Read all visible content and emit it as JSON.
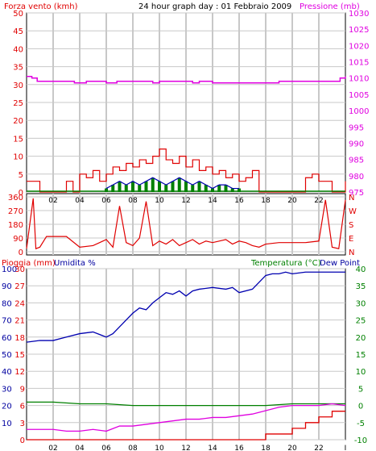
{
  "header": {
    "title": "24 hour graph day : 01 Febbraio 2009",
    "left_label": "Forza vento (kmh)",
    "right_label": "Pressione (mb)"
  },
  "hour_labels": [
    "02",
    "04",
    "06",
    "08",
    "10",
    "12",
    "14",
    "16",
    "18",
    "20",
    "22",
    "I"
  ],
  "colors": {
    "red": "#e00000",
    "magenta": "#e000e0",
    "blue": "#0000b0",
    "green": "#008000",
    "navy": "#0000a0",
    "grid": "#c8c8c8"
  },
  "chart_data": [
    {
      "type": "line",
      "title": "24 hour graph day : 01 Febbraio 2009",
      "y_left_label": "Forza vento (kmh)",
      "y_right_label": "Pressione (mb)",
      "y_left_ticks": [
        "0",
        "5",
        "10",
        "15",
        "20",
        "25",
        "30",
        "35",
        "40",
        "45",
        "50"
      ],
      "y_left_range": [
        0,
        50
      ],
      "y_right_ticks": [
        "975",
        "980",
        "985",
        "990",
        "995",
        "1000",
        "1005",
        "1010",
        "1015",
        "1020",
        "1025",
        "1030"
      ],
      "y_right_range": [
        975,
        1030
      ],
      "x_range": [
        0,
        24
      ],
      "pressure_series": {
        "x": [
          0,
          0.4,
          0.8,
          2,
          3.5,
          3.6,
          4.5,
          5.5,
          6,
          6.8,
          8,
          8.5,
          9.5,
          10,
          11,
          12,
          12.5,
          13,
          14,
          15.5,
          17,
          19,
          21,
          22,
          23,
          23.6,
          24
        ],
        "y": [
          1010.5,
          1010,
          1009,
          1009,
          1009,
          1008.5,
          1009,
          1009,
          1008.5,
          1009,
          1009,
          1009,
          1008.5,
          1009,
          1009,
          1009,
          1008.5,
          1009,
          1008.5,
          1008.5,
          1008.5,
          1009,
          1009,
          1009,
          1009,
          1010,
          1010.5
        ]
      },
      "wind_gust_series": {
        "x": [
          0,
          0.5,
          1,
          1.5,
          2,
          2.5,
          3,
          3.5,
          4,
          4.5,
          5,
          5.5,
          6,
          6.5,
          7,
          7.5,
          8,
          8.5,
          9,
          9.5,
          10,
          10.5,
          11,
          11.5,
          12,
          12.5,
          13,
          13.5,
          14,
          14.5,
          15,
          15.5,
          16,
          16.5,
          17,
          17.5,
          18,
          18.5,
          19,
          19.5,
          20,
          20.5,
          21,
          21.5,
          22,
          22.5,
          23,
          23.5,
          24
        ],
        "y": [
          3,
          3,
          0,
          0,
          0,
          0,
          3,
          0,
          5,
          4,
          6,
          3,
          5,
          7,
          6,
          8,
          7,
          9,
          8,
          10,
          12,
          9,
          8,
          10,
          7,
          9,
          6,
          7,
          5,
          6,
          4,
          5,
          3,
          4,
          6,
          0,
          0,
          0,
          0,
          0,
          0,
          0,
          4,
          5,
          3,
          3,
          0,
          0,
          3
        ]
      },
      "wind_avg_series": {
        "x": [
          6,
          6.5,
          7,
          7.5,
          8,
          8.5,
          9,
          9.5,
          10,
          10.5,
          11,
          11.5,
          12,
          12.5,
          13,
          13.5,
          14,
          14.5,
          15,
          15.5,
          16
        ],
        "y": [
          1,
          2,
          3,
          2,
          3,
          2,
          3,
          4,
          3,
          2,
          3,
          4,
          3,
          2,
          3,
          2,
          1,
          2,
          2,
          1,
          1
        ]
      }
    },
    {
      "type": "line",
      "title": "",
      "y_left_ticks": [
        "360",
        "270",
        "180",
        "90",
        "0"
      ],
      "y_left_range": [
        0,
        360
      ],
      "y_right_ticks": [
        "N",
        "W",
        "S",
        "E",
        "N"
      ],
      "x_range": [
        0,
        24
      ],
      "direction_series": {
        "x": [
          0,
          0.5,
          0.7,
          1,
          1.5,
          2,
          3,
          4,
          5,
          5.5,
          6,
          6.5,
          7,
          7.5,
          8,
          8.5,
          9,
          9.5,
          10,
          10.5,
          11,
          11.5,
          12,
          12.5,
          13,
          13.5,
          14,
          14.5,
          15,
          15.5,
          16,
          16.5,
          17,
          17.5,
          18,
          19,
          20,
          21,
          22,
          22.5,
          23,
          23.5,
          24
        ],
        "y": [
          20,
          350,
          20,
          30,
          100,
          100,
          100,
          30,
          40,
          60,
          80,
          30,
          300,
          60,
          40,
          90,
          330,
          40,
          70,
          50,
          80,
          40,
          60,
          80,
          50,
          70,
          60,
          70,
          80,
          50,
          70,
          60,
          40,
          30,
          50,
          60,
          60,
          60,
          70,
          340,
          30,
          20,
          340
        ]
      }
    },
    {
      "type": "line",
      "title": "",
      "y_left_label": "Pioggia (mm)",
      "y_left2_label": "Umidita %",
      "y_right_label": "Temperatura (°C)",
      "y_right2_label": "Dew Point",
      "y_rain_ticks": [
        "0",
        "3",
        "6",
        "9",
        "12",
        "15",
        "18",
        "21",
        "24",
        "27",
        "30"
      ],
      "y_hum_ticks": [
        "10",
        "20",
        "30",
        "40",
        "50",
        "60",
        "70",
        "80",
        "90",
        "100"
      ],
      "y_temp_ticks": [
        "-10",
        "-5",
        "0",
        "5",
        "10",
        "15",
        "20",
        "25",
        "30",
        "35",
        "40"
      ],
      "y_temp_range": [
        -10,
        40
      ],
      "humidity_series": {
        "x": [
          0,
          1,
          2,
          3,
          4,
          5,
          6,
          6.5,
          7,
          7.5,
          8,
          8.5,
          9,
          9.5,
          10,
          10.5,
          11,
          11.5,
          12,
          12.5,
          13,
          14,
          15,
          15.5,
          16,
          17,
          17.5,
          18,
          18.5,
          19,
          19.5,
          20,
          21,
          22,
          23,
          24
        ],
        "y": [
          57,
          58,
          58,
          60,
          62,
          63,
          60,
          62,
          66,
          70,
          74,
          77,
          76,
          80,
          83,
          86,
          85,
          87,
          84,
          87,
          88,
          89,
          88,
          89,
          86,
          88,
          92,
          96,
          97,
          97,
          98,
          97,
          98,
          98,
          98,
          98
        ]
      },
      "temperature_series": {
        "x": [
          0,
          2,
          4,
          6,
          8,
          10,
          12,
          14,
          16,
          18,
          20,
          22,
          24
        ],
        "y": [
          1,
          1,
          0.5,
          0.5,
          0,
          0,
          0,
          0,
          0,
          0,
          0.5,
          0.5,
          0.5
        ]
      },
      "dewpoint_series": {
        "x": [
          0,
          2,
          3,
          4,
          5,
          6,
          7,
          8,
          9,
          10,
          11,
          12,
          13,
          14,
          15,
          16,
          17,
          18,
          19,
          20,
          21,
          22,
          23,
          24
        ],
        "y": [
          -7,
          -7,
          -7.5,
          -7.5,
          -7,
          -7.5,
          -6,
          -6,
          -5.5,
          -5,
          -4.5,
          -4,
          -4,
          -3.5,
          -3.5,
          -3,
          -2.5,
          -1.5,
          -0.5,
          0,
          0,
          0,
          0.5,
          0
        ]
      },
      "rain_series": {
        "x": [
          0,
          17,
          18,
          19,
          20,
          21,
          22,
          22.5,
          23,
          24
        ],
        "y": [
          0,
          0,
          1,
          1,
          2,
          3,
          4,
          4,
          5,
          5
        ]
      }
    }
  ]
}
